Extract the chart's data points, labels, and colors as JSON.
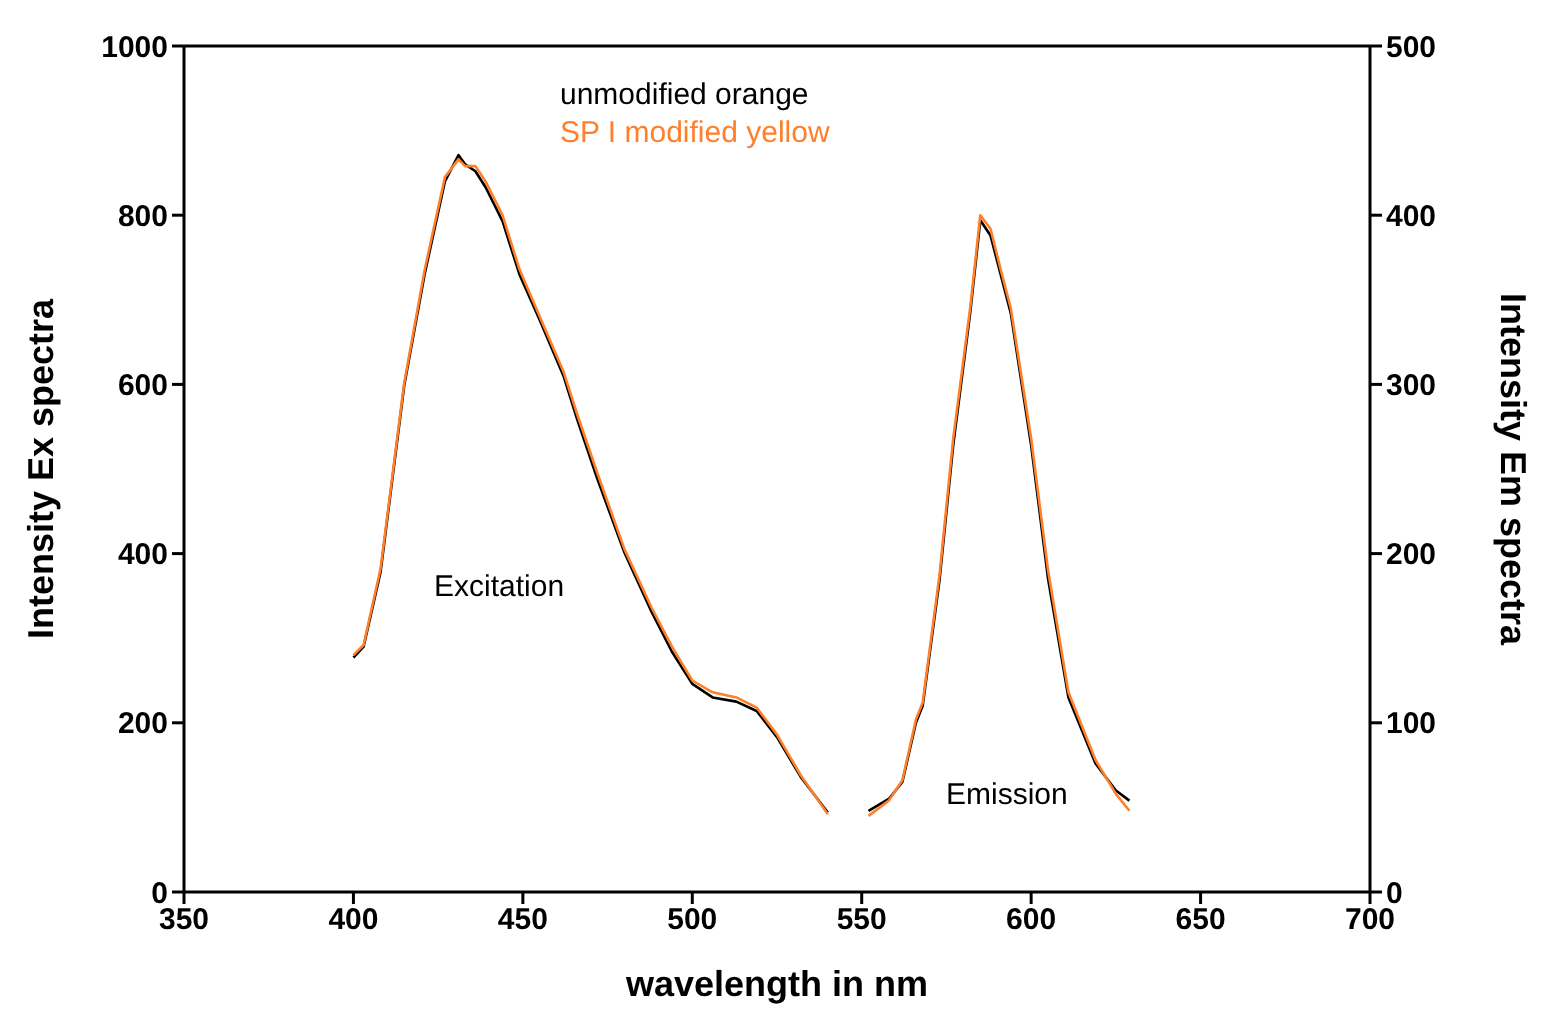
{
  "chart_data": {
    "type": "line",
    "xlabel": "wavelength in nm",
    "ylabel": "Intensity Ex spectra",
    "y2label": "Intensity Em spectra",
    "xlim": [
      350,
      700
    ],
    "xticks": [
      350,
      400,
      450,
      500,
      550,
      600,
      650,
      700
    ],
    "ylim": [
      0,
      1000
    ],
    "yticks": [
      0,
      200,
      400,
      600,
      800,
      1000
    ],
    "y2lim": [
      0,
      500
    ],
    "y2ticks": [
      0,
      100,
      200,
      300,
      400,
      500
    ],
    "legend": "top",
    "marker": "none",
    "line_style": "solid",
    "annotations": [
      "Excitation",
      "Emission"
    ],
    "series": [
      {
        "name": "unmodified orange",
        "color": "#000000",
        "x": [
          400,
          403,
          408,
          415,
          421,
          427,
          431,
          433,
          436,
          439,
          444,
          449,
          455,
          462,
          466,
          472,
          480,
          488,
          494,
          500,
          506,
          513,
          519,
          525,
          532,
          540
        ],
        "values": [
          277,
          290,
          378,
          599,
          730,
          840,
          871,
          860,
          852,
          833,
          793,
          730,
          676,
          610,
          559,
          488,
          401,
          331,
          284,
          246,
          230,
          225,
          214,
          183,
          136,
          94
        ]
      },
      {
        "name": "SP I modified yellow",
        "color": "#ff7f2a",
        "x": [
          400,
          403,
          408,
          415,
          421,
          427,
          431,
          433,
          436,
          439,
          444,
          449,
          455,
          462,
          466,
          472,
          480,
          488,
          494,
          500,
          506,
          513,
          519,
          525,
          532,
          540
        ],
        "values": [
          280,
          292,
          382,
          602,
          735,
          845,
          866,
          858,
          858,
          840,
          800,
          736,
          680,
          615,
          565,
          495,
          405,
          336,
          290,
          250,
          236,
          230,
          218,
          186,
          138,
          92
        ]
      },
      {
        "color": "#000000",
        "axis": "y2",
        "x": [
          552,
          558,
          562,
          566,
          568,
          573,
          577,
          582,
          585,
          588,
          591,
          594,
          600,
          605,
          611,
          619,
          625,
          629
        ],
        "values": [
          48,
          55,
          65,
          100,
          110,
          185,
          264,
          342,
          397,
          388,
          365,
          342,
          264,
          185,
          115,
          76,
          60,
          54
        ]
      },
      {
        "color": "#ff7f2a",
        "axis": "y2",
        "x": [
          552,
          558,
          562,
          566,
          568,
          573,
          577,
          582,
          585,
          588,
          591,
          594,
          600,
          605,
          611,
          619,
          625,
          629
        ],
        "values": [
          45,
          54,
          66,
          102,
          112,
          188,
          268,
          345,
          400,
          392,
          368,
          345,
          268,
          190,
          118,
          78,
          58,
          48
        ]
      }
    ]
  }
}
